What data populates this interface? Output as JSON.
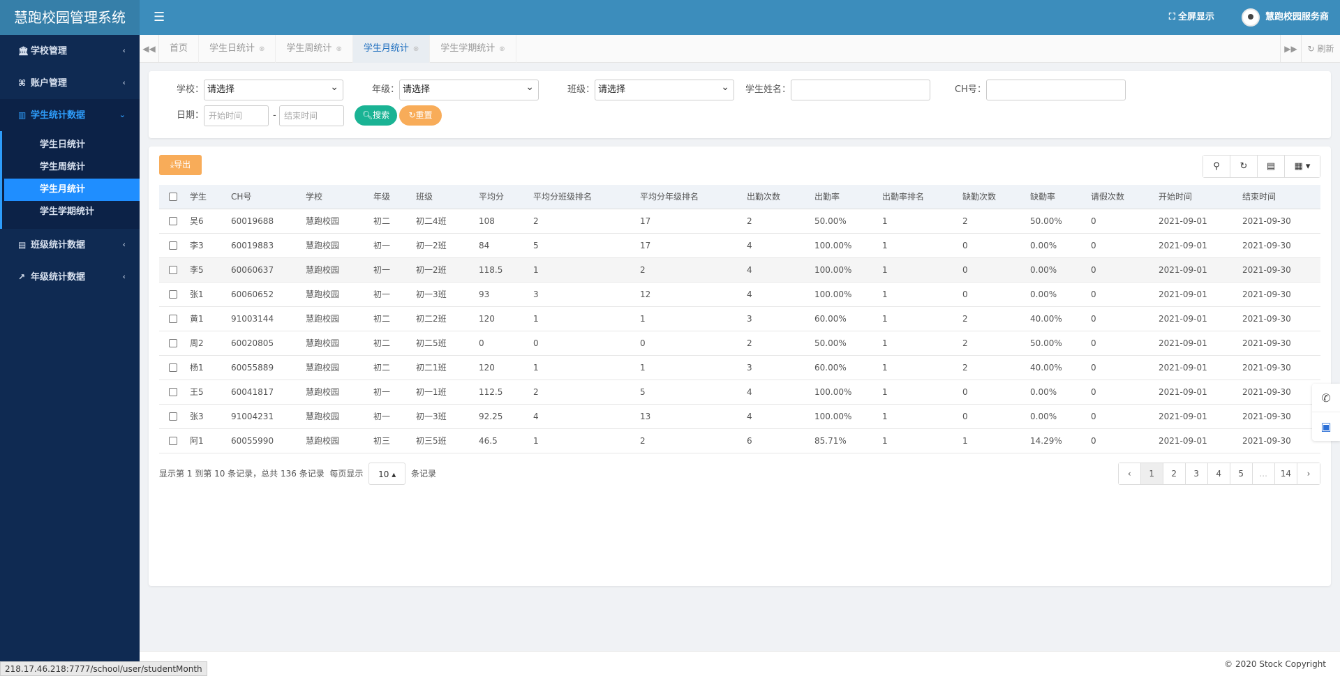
{
  "app": {
    "title": "慧跑校园管理系统"
  },
  "header": {
    "fullscreen_label": "全屏显示",
    "user_name": "慧跑校园服务商"
  },
  "sidebar": {
    "items": [
      {
        "label": "学校管理",
        "icon": "bank-icon"
      },
      {
        "label": "账户管理",
        "icon": "binoculars-icon"
      },
      {
        "label": "学生统计数据",
        "icon": "bar-chart-icon",
        "open": true,
        "children": [
          {
            "label": "学生日统计"
          },
          {
            "label": "学生周统计"
          },
          {
            "label": "学生月统计",
            "active": true
          },
          {
            "label": "学生学期统计"
          }
        ]
      },
      {
        "label": "班级统计数据",
        "icon": "area-chart-icon"
      },
      {
        "label": "年级统计数据",
        "icon": "line-chart-icon"
      }
    ]
  },
  "tabs": [
    {
      "label": "首页",
      "closable": false
    },
    {
      "label": "学生日统计",
      "closable": true
    },
    {
      "label": "学生周统计",
      "closable": true
    },
    {
      "label": "学生月统计",
      "closable": true,
      "active": true
    },
    {
      "label": "学生学期统计",
      "closable": true
    }
  ],
  "tabs_refresh_label": "刷新",
  "search": {
    "school_label": "学校：",
    "school_value": "请选择",
    "grade_label": "年级：",
    "grade_value": "请选择",
    "class_label": "班级：",
    "class_value": "请选择",
    "name_label": "学生姓名：",
    "name_value": "",
    "ch_label": "CH号：",
    "ch_value": "",
    "date_label": "日期：",
    "start_placeholder": "开始时间",
    "date_sep": "-",
    "end_placeholder": "结束时间",
    "search_button": "搜索",
    "reset_button": "重置"
  },
  "table": {
    "export_button": "导出",
    "columns": [
      "学生",
      "CH号",
      "学校",
      "年级",
      "班级",
      "平均分",
      "平均分班级排名",
      "平均分年级排名",
      "出勤次数",
      "出勤率",
      "出勤率排名",
      "缺勤次数",
      "缺勤率",
      "请假次数",
      "开始时间",
      "结束时间"
    ],
    "rows": [
      [
        "吴6",
        "60019688",
        "慧跑校园",
        "初二",
        "初二4班",
        "108",
        "2",
        "17",
        "2",
        "50.00%",
        "1",
        "2",
        "50.00%",
        "0",
        "2021-09-01",
        "2021-09-30"
      ],
      [
        "李3",
        "60019883",
        "慧跑校园",
        "初一",
        "初一2班",
        "84",
        "5",
        "17",
        "4",
        "100.00%",
        "1",
        "0",
        "0.00%",
        "0",
        "2021-09-01",
        "2021-09-30"
      ],
      [
        "李5",
        "60060637",
        "慧跑校园",
        "初一",
        "初一2班",
        "118.5",
        "1",
        "2",
        "4",
        "100.00%",
        "1",
        "0",
        "0.00%",
        "0",
        "2021-09-01",
        "2021-09-30"
      ],
      [
        "张1",
        "60060652",
        "慧跑校园",
        "初一",
        "初一3班",
        "93",
        "3",
        "12",
        "4",
        "100.00%",
        "1",
        "0",
        "0.00%",
        "0",
        "2021-09-01",
        "2021-09-30"
      ],
      [
        "黄1",
        "91003144",
        "慧跑校园",
        "初二",
        "初二2班",
        "120",
        "1",
        "1",
        "3",
        "60.00%",
        "1",
        "2",
        "40.00%",
        "0",
        "2021-09-01",
        "2021-09-30"
      ],
      [
        "周2",
        "60020805",
        "慧跑校园",
        "初二",
        "初二5班",
        "0",
        "0",
        "0",
        "2",
        "50.00%",
        "1",
        "2",
        "50.00%",
        "0",
        "2021-09-01",
        "2021-09-30"
      ],
      [
        "杨1",
        "60055889",
        "慧跑校园",
        "初二",
        "初二1班",
        "120",
        "1",
        "1",
        "3",
        "60.00%",
        "1",
        "2",
        "40.00%",
        "0",
        "2021-09-01",
        "2021-09-30"
      ],
      [
        "王5",
        "60041817",
        "慧跑校园",
        "初一",
        "初一1班",
        "112.5",
        "2",
        "5",
        "4",
        "100.00%",
        "1",
        "0",
        "0.00%",
        "0",
        "2021-09-01",
        "2021-09-30"
      ],
      [
        "张3",
        "91004231",
        "慧跑校园",
        "初一",
        "初一3班",
        "92.25",
        "4",
        "13",
        "4",
        "100.00%",
        "1",
        "0",
        "0.00%",
        "0",
        "2021-09-01",
        "2021-09-30"
      ],
      [
        "阿1",
        "60055990",
        "慧跑校园",
        "初三",
        "初三5班",
        "46.5",
        "1",
        "2",
        "6",
        "85.71%",
        "1",
        "1",
        "14.29%",
        "0",
        "2021-09-01",
        "2021-09-30"
      ]
    ]
  },
  "pager": {
    "info_prefix": "显示第 1 到第 10 条记录，总共 136 条记录",
    "per_page_prefix": "每页显示",
    "page_size": "10",
    "per_page_suffix": "条记录",
    "pages": [
      "‹",
      "1",
      "2",
      "3",
      "4",
      "5",
      "...",
      "14",
      "›"
    ],
    "current_page": "1"
  },
  "footer": {
    "copyright": "© 2020 Stock Copyright"
  },
  "status_url": "218.17.46.218:7777/school/user/studentMonth",
  "colors": {
    "topbar": "#3c8dbc",
    "sidebar": "#0f2a52",
    "active": "#1f8eff",
    "search_btn": "#1ab394",
    "orange_btn": "#f8ac59"
  }
}
